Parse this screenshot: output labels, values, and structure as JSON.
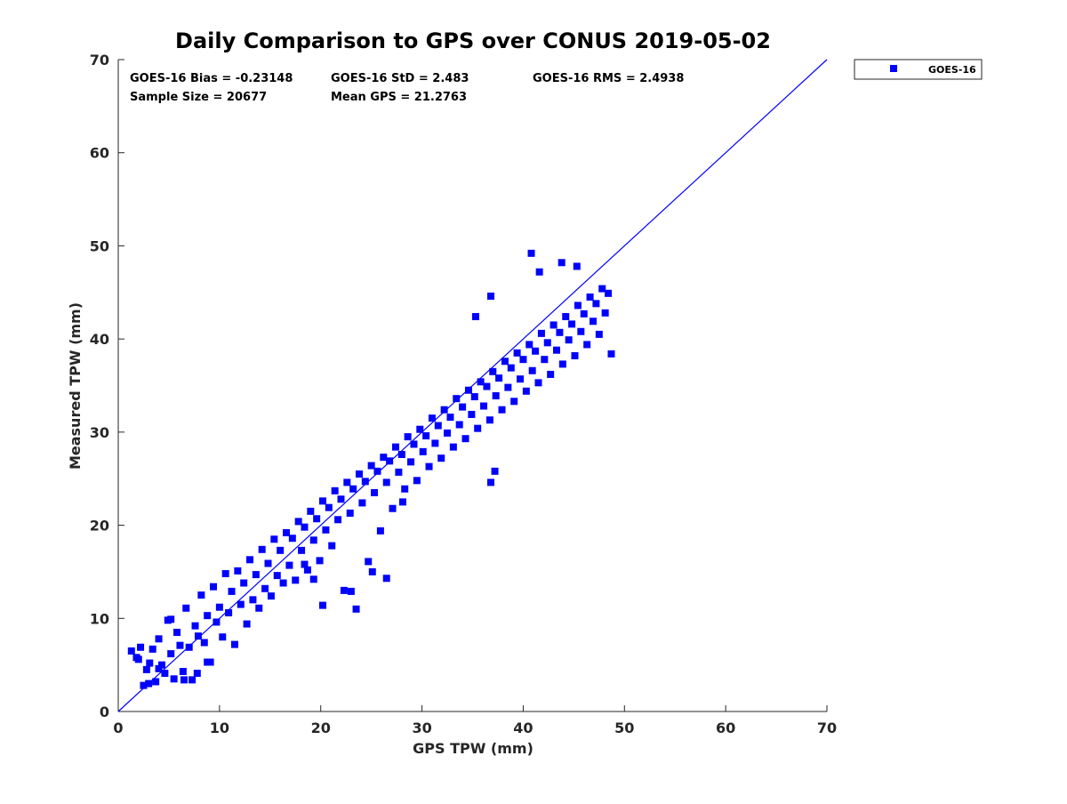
{
  "chart_data": {
    "type": "scatter",
    "title": "Daily Comparison to GPS over CONUS 2019-05-02",
    "xlabel": "GPS TPW (mm)",
    "ylabel": "Measured TPW (mm)",
    "xlim": [
      0,
      70
    ],
    "ylim": [
      0,
      70
    ],
    "xticks": [
      "0",
      "10",
      "20",
      "30",
      "40",
      "50",
      "60",
      "70"
    ],
    "yticks": [
      "0",
      "10",
      "20",
      "30",
      "40",
      "50",
      "60",
      "70"
    ],
    "grid": false,
    "legend_position": "outside-top-right",
    "stats": [
      "GOES-16 Bias = -0.23148",
      "GOES-16 StD = 2.483",
      "GOES-16 RMS = 2.4938",
      "Sample Size = 20677",
      "Mean GPS = 21.2763"
    ],
    "reference_line": {
      "x": [
        0,
        70
      ],
      "y": [
        0,
        70
      ],
      "color": "#0000ff"
    },
    "series": [
      {
        "name": "GOES-16",
        "color": "#0000ff",
        "marker": "square",
        "points": [
          [
            1.3,
            6.5
          ],
          [
            1.8,
            5.8
          ],
          [
            2.2,
            6.9
          ],
          [
            2.5,
            2.8
          ],
          [
            2.8,
            4.5
          ],
          [
            3.1,
            5.2
          ],
          [
            3.4,
            6.7
          ],
          [
            3.7,
            3.2
          ],
          [
            4.0,
            7.8
          ],
          [
            4.3,
            5.0
          ],
          [
            4.6,
            4.1
          ],
          [
            4.9,
            9.8
          ],
          [
            5.2,
            6.2
          ],
          [
            5.5,
            3.5
          ],
          [
            5.8,
            8.5
          ],
          [
            6.1,
            7.1
          ],
          [
            6.4,
            4.3
          ],
          [
            6.7,
            11.1
          ],
          [
            7.0,
            6.9
          ],
          [
            7.3,
            3.4
          ],
          [
            7.6,
            9.2
          ],
          [
            7.9,
            8.1
          ],
          [
            8.2,
            12.5
          ],
          [
            8.5,
            7.4
          ],
          [
            8.8,
            10.3
          ],
          [
            9.1,
            5.3
          ],
          [
            9.4,
            13.4
          ],
          [
            9.7,
            9.6
          ],
          [
            10.0,
            11.2
          ],
          [
            10.3,
            8.0
          ],
          [
            10.6,
            14.8
          ],
          [
            10.9,
            10.6
          ],
          [
            11.2,
            12.9
          ],
          [
            11.5,
            7.2
          ],
          [
            11.8,
            15.1
          ],
          [
            12.1,
            11.5
          ],
          [
            12.4,
            13.8
          ],
          [
            12.7,
            9.4
          ],
          [
            13.0,
            16.3
          ],
          [
            13.3,
            12.0
          ],
          [
            13.6,
            14.7
          ],
          [
            13.9,
            11.1
          ],
          [
            14.2,
            17.4
          ],
          [
            14.5,
            13.2
          ],
          [
            14.8,
            15.9
          ],
          [
            15.1,
            12.4
          ],
          [
            15.4,
            18.5
          ],
          [
            15.7,
            14.6
          ],
          [
            16.0,
            17.3
          ],
          [
            16.3,
            13.8
          ],
          [
            16.6,
            19.2
          ],
          [
            16.9,
            15.7
          ],
          [
            17.2,
            18.6
          ],
          [
            17.5,
            14.1
          ],
          [
            17.8,
            20.4
          ],
          [
            18.1,
            17.3
          ],
          [
            18.4,
            19.8
          ],
          [
            18.7,
            15.2
          ],
          [
            19.0,
            21.5
          ],
          [
            19.3,
            18.4
          ],
          [
            19.6,
            20.7
          ],
          [
            19.9,
            16.2
          ],
          [
            20.2,
            22.6
          ],
          [
            20.5,
            19.5
          ],
          [
            20.8,
            21.9
          ],
          [
            21.1,
            17.8
          ],
          [
            21.4,
            23.7
          ],
          [
            21.7,
            20.6
          ],
          [
            22.0,
            22.8
          ],
          [
            22.3,
            13.0
          ],
          [
            22.6,
            24.6
          ],
          [
            22.9,
            21.3
          ],
          [
            23.2,
            23.9
          ],
          [
            23.5,
            11.0
          ],
          [
            23.8,
            25.5
          ],
          [
            24.1,
            22.4
          ],
          [
            24.4,
            24.7
          ],
          [
            24.7,
            16.1
          ],
          [
            25.0,
            26.4
          ],
          [
            25.3,
            23.5
          ],
          [
            25.6,
            25.8
          ],
          [
            25.9,
            19.4
          ],
          [
            26.2,
            27.3
          ],
          [
            26.5,
            24.6
          ],
          [
            26.8,
            26.9
          ],
          [
            27.1,
            21.8
          ],
          [
            27.4,
            28.4
          ],
          [
            27.7,
            25.7
          ],
          [
            28.0,
            27.6
          ],
          [
            28.3,
            23.9
          ],
          [
            28.6,
            29.5
          ],
          [
            28.9,
            26.8
          ],
          [
            29.2,
            28.7
          ],
          [
            29.5,
            24.8
          ],
          [
            29.8,
            30.3
          ],
          [
            30.1,
            27.9
          ],
          [
            30.4,
            29.6
          ],
          [
            30.7,
            26.3
          ],
          [
            31.0,
            31.5
          ],
          [
            31.3,
            28.8
          ],
          [
            31.6,
            30.7
          ],
          [
            31.9,
            27.2
          ],
          [
            32.2,
            32.4
          ],
          [
            32.5,
            29.9
          ],
          [
            32.8,
            31.6
          ],
          [
            33.1,
            28.4
          ],
          [
            33.4,
            33.6
          ],
          [
            33.7,
            30.8
          ],
          [
            34.0,
            32.7
          ],
          [
            34.3,
            29.3
          ],
          [
            34.6,
            34.5
          ],
          [
            34.9,
            31.9
          ],
          [
            35.2,
            33.8
          ],
          [
            35.5,
            30.4
          ],
          [
            35.8,
            35.4
          ],
          [
            36.1,
            32.8
          ],
          [
            36.4,
            34.9
          ],
          [
            36.7,
            31.3
          ],
          [
            37.0,
            36.5
          ],
          [
            37.3,
            33.9
          ],
          [
            37.6,
            35.8
          ],
          [
            37.9,
            32.4
          ],
          [
            38.2,
            37.6
          ],
          [
            38.5,
            34.8
          ],
          [
            38.8,
            36.9
          ],
          [
            39.1,
            33.3
          ],
          [
            39.4,
            38.5
          ],
          [
            39.7,
            35.7
          ],
          [
            40.0,
            37.8
          ],
          [
            40.3,
            34.4
          ],
          [
            40.6,
            39.4
          ],
          [
            40.9,
            36.6
          ],
          [
            41.2,
            38.7
          ],
          [
            41.5,
            35.3
          ],
          [
            41.8,
            40.6
          ],
          [
            42.1,
            37.8
          ],
          [
            42.4,
            39.6
          ],
          [
            42.7,
            36.2
          ],
          [
            43.0,
            41.5
          ],
          [
            43.3,
            38.8
          ],
          [
            43.6,
            40.7
          ],
          [
            43.9,
            37.3
          ],
          [
            44.2,
            42.4
          ],
          [
            44.5,
            39.9
          ],
          [
            44.8,
            41.6
          ],
          [
            45.1,
            38.2
          ],
          [
            45.4,
            43.6
          ],
          [
            45.7,
            40.8
          ],
          [
            46.0,
            42.7
          ],
          [
            46.3,
            39.4
          ],
          [
            46.6,
            44.5
          ],
          [
            46.9,
            41.9
          ],
          [
            47.2,
            43.8
          ],
          [
            47.5,
            40.5
          ],
          [
            47.8,
            45.4
          ],
          [
            48.1,
            42.8
          ],
          [
            48.4,
            44.9
          ],
          [
            48.7,
            38.4
          ],
          [
            40.8,
            49.2
          ],
          [
            43.8,
            48.2
          ],
          [
            45.3,
            47.8
          ],
          [
            41.6,
            47.2
          ],
          [
            36.8,
            44.6
          ],
          [
            35.3,
            42.4
          ],
          [
            28.1,
            22.5
          ],
          [
            36.8,
            24.6
          ],
          [
            37.2,
            25.8
          ],
          [
            23.0,
            12.9
          ],
          [
            20.2,
            11.4
          ],
          [
            18.4,
            15.8
          ],
          [
            19.3,
            14.2
          ],
          [
            25.1,
            15.0
          ],
          [
            26.5,
            14.3
          ],
          [
            5.2,
            9.9
          ],
          [
            4.0,
            4.6
          ],
          [
            6.5,
            3.4
          ],
          [
            7.8,
            4.1
          ],
          [
            3.0,
            3.0
          ],
          [
            2.0,
            5.6
          ],
          [
            8.8,
            5.3
          ]
        ]
      }
    ]
  }
}
